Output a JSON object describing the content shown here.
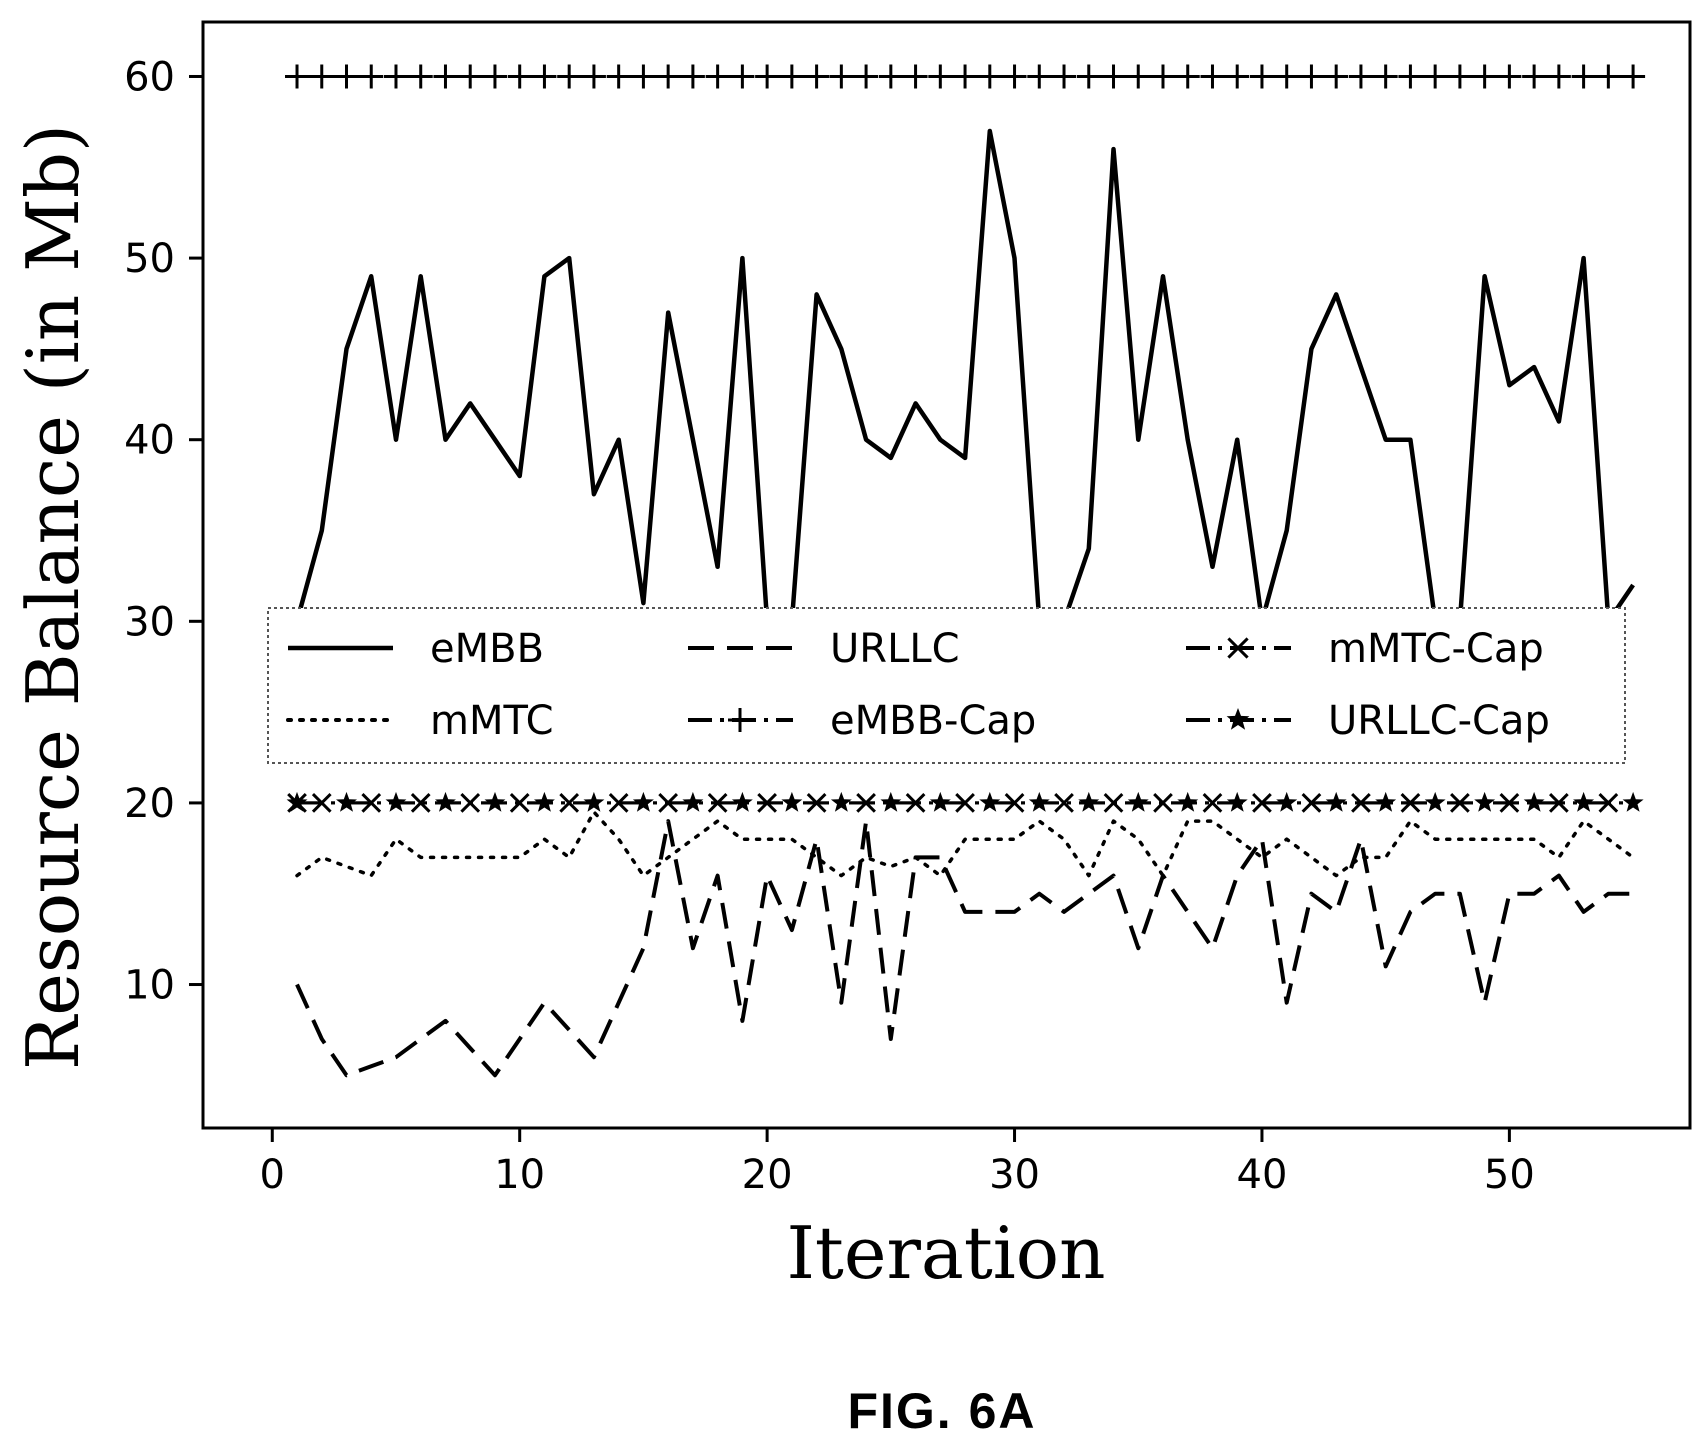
{
  "chart_data": {
    "type": "line",
    "xlabel": "Iteration",
    "ylabel": "Resource Balance (in Mb)",
    "xlim": [
      -2.8,
      57.3
    ],
    "ylim": [
      2.1,
      63.0
    ],
    "x_ticks": [
      0,
      10,
      20,
      30,
      40,
      50
    ],
    "y_ticks": [
      10,
      20,
      30,
      40,
      50,
      60
    ],
    "grid": false,
    "legend_placement": "center, inside plot area, 3 columns",
    "x": [
      1,
      2,
      3,
      4,
      5,
      6,
      7,
      8,
      9,
      10,
      11,
      12,
      13,
      14,
      15,
      16,
      17,
      18,
      19,
      20,
      21,
      22,
      23,
      24,
      25,
      26,
      27,
      28,
      29,
      30,
      31,
      32,
      33,
      34,
      35,
      36,
      37,
      38,
      39,
      40,
      41,
      42,
      43,
      44,
      45,
      46,
      47,
      48,
      49,
      50,
      51,
      52,
      53,
      54,
      55
    ],
    "series": [
      {
        "name": "eMBB",
        "style": "solid",
        "marker": "none",
        "values": [
          30,
          35,
          45,
          49,
          40,
          49,
          40,
          42,
          40,
          38,
          49,
          50,
          37,
          40,
          31,
          47,
          40,
          33,
          50,
          30,
          30,
          48,
          45,
          40,
          39,
          42,
          40,
          39,
          57,
          50,
          30,
          30,
          34,
          56,
          40,
          49,
          40,
          33,
          40,
          30,
          35,
          45,
          48,
          44,
          40,
          40,
          30,
          30,
          49,
          43,
          44,
          41,
          50,
          30,
          32
        ]
      },
      {
        "name": "URLLC",
        "style": "dashed",
        "marker": "none",
        "values": [
          10,
          7,
          5,
          5.5,
          6,
          7,
          8,
          6.5,
          5,
          7,
          9,
          7.5,
          6,
          9,
          12,
          19,
          12,
          16,
          8,
          16,
          13,
          18,
          9,
          19,
          7,
          17,
          17,
          14,
          14,
          14,
          15,
          14,
          15,
          16,
          12,
          16,
          14,
          12,
          16,
          18,
          9,
          15,
          14,
          18,
          11,
          14,
          15,
          15,
          9,
          15,
          15,
          16,
          14,
          15,
          15
        ]
      },
      {
        "name": "mMTC",
        "style": "dotted",
        "marker": "none",
        "values": [
          16,
          17,
          16.5,
          16,
          18,
          17,
          17,
          17,
          17,
          17,
          18,
          17,
          19.5,
          18,
          16,
          17,
          18,
          19,
          18,
          18,
          18,
          17,
          16,
          17,
          16.5,
          17,
          16,
          18,
          18,
          18,
          19,
          18,
          16,
          19,
          18,
          16,
          19,
          19,
          18,
          17,
          18,
          17,
          16,
          17,
          17,
          19,
          18,
          18,
          18,
          18,
          18,
          17,
          19,
          18,
          17
        ]
      },
      {
        "name": "eMBB-Cap",
        "style": "dash-dot",
        "marker": "plus",
        "values": [
          60,
          60,
          60,
          60,
          60,
          60,
          60,
          60,
          60,
          60,
          60,
          60,
          60,
          60,
          60,
          60,
          60,
          60,
          60,
          60,
          60,
          60,
          60,
          60,
          60,
          60,
          60,
          60,
          60,
          60,
          60,
          60,
          60,
          60,
          60,
          60,
          60,
          60,
          60,
          60,
          60,
          60,
          60,
          60,
          60,
          60,
          60,
          60,
          60,
          60,
          60,
          60,
          60,
          60,
          60
        ]
      },
      {
        "name": "mMTC-Cap",
        "style": "dash-dot",
        "marker": "x",
        "values": [
          20,
          20,
          20,
          20,
          20,
          20,
          20,
          20,
          20,
          20,
          20,
          20,
          20,
          20,
          20,
          20,
          20,
          20,
          20,
          20,
          20,
          20,
          20,
          20,
          20,
          20,
          20,
          20,
          20,
          20,
          20,
          20,
          20,
          20,
          20,
          20,
          20,
          20,
          20,
          20,
          20,
          20,
          20,
          20,
          20,
          20,
          20,
          20,
          20,
          20,
          20,
          20,
          20,
          20,
          20
        ]
      },
      {
        "name": "URLLC-Cap",
        "style": "dash-dot",
        "marker": "star",
        "values": [
          20,
          20,
          20,
          20,
          20,
          20,
          20,
          20,
          20,
          20,
          20,
          20,
          20,
          20,
          20,
          20,
          20,
          20,
          20,
          20,
          20,
          20,
          20,
          20,
          20,
          20,
          20,
          20,
          20,
          20,
          20,
          20,
          20,
          20,
          20,
          20,
          20,
          20,
          20,
          20,
          20,
          20,
          20,
          20,
          20,
          20,
          20,
          20,
          20,
          20,
          20,
          20,
          20,
          20,
          20
        ]
      }
    ]
  },
  "caption": "FIG. 6A"
}
